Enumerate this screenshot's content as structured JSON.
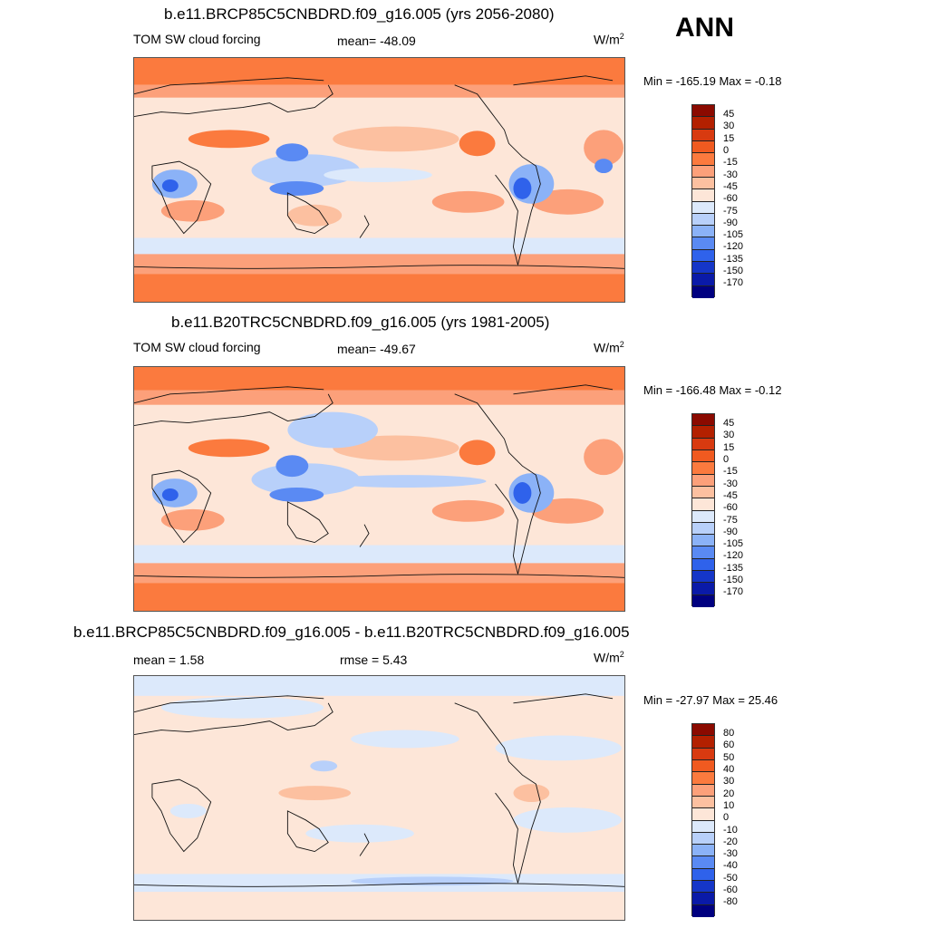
{
  "season": "ANN",
  "panels": [
    {
      "title": "b.e11.BRCP85C5CNBDRD.f09_g16.005 (yrs 2056-2080)",
      "left_label": "TOM SW cloud forcing",
      "center_label": "mean= -48.09",
      "units_base": "W/m",
      "units_sup": "2",
      "minmax": "Min = -165.19 Max =  -0.18",
      "colorbar_labels": [
        "45",
        "30",
        "15",
        "0",
        "-15",
        "-30",
        "-45",
        "-60",
        "-75",
        "-90",
        "-105",
        "-120",
        "-135",
        "-150",
        "-170"
      ]
    },
    {
      "title": "b.e11.B20TRC5CNBDRD.f09_g16.005 (yrs 1981-2005)",
      "left_label": "TOM SW cloud forcing",
      "center_label": "mean= -49.67",
      "units_base": "W/m",
      "units_sup": "2",
      "minmax": "Min = -166.48 Max =  -0.12",
      "colorbar_labels": [
        "45",
        "30",
        "15",
        "0",
        "-15",
        "-30",
        "-45",
        "-60",
        "-75",
        "-90",
        "-105",
        "-120",
        "-135",
        "-150",
        "-170"
      ]
    },
    {
      "title": "b.e11.BRCP85C5CNBDRD.f09_g16.005 - b.e11.B20TRC5CNBDRD.f09_g16.005",
      "left_label": "mean =   1.58",
      "center_label": "rmse =   5.43",
      "units_base": "W/m",
      "units_sup": "2",
      "minmax": "Min = -27.97 Max =  25.46",
      "colorbar_labels": [
        "80",
        "60",
        "50",
        "40",
        "30",
        "20",
        "10",
        "0",
        "-10",
        "-20",
        "-30",
        "-40",
        "-50",
        "-60",
        "-80"
      ]
    }
  ],
  "colors": {
    "colorbar_abs": [
      "#8b0a00",
      "#b32000",
      "#d83a10",
      "#f05a20",
      "#fb7a3e",
      "#fca07a",
      "#fcc0a0",
      "#fde6d8",
      "#dce9fb",
      "#b8d0fa",
      "#8bb2f7",
      "#5a8af3",
      "#2f62eb",
      "#1536c8",
      "#0a1aa8",
      "#000080"
    ],
    "colorbar_diff": [
      "#8b0a00",
      "#b32000",
      "#d83a10",
      "#f05a20",
      "#fb7a3e",
      "#fca07a",
      "#fcc0a0",
      "#fde6d8",
      "#dce9fb",
      "#b8d0fa",
      "#8bb2f7",
      "#5a8af3",
      "#2f62eb",
      "#1536c8",
      "#0a1aa8",
      "#000080"
    ],
    "map_background_abs": "#fcc0a0",
    "map_background_diff": "#fde6d8",
    "land_outline": "#111111"
  }
}
